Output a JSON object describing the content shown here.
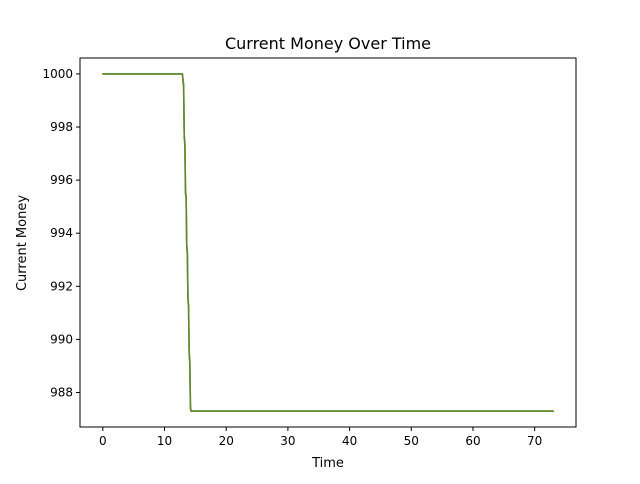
{
  "chart_data": {
    "type": "line",
    "title": "Current Money Over Time",
    "xlabel": "Time",
    "ylabel": "Current Money",
    "xlim": [
      -3.7,
      76.7
    ],
    "ylim": [
      986.7,
      1000.6
    ],
    "xticks": [
      0,
      10,
      20,
      30,
      40,
      50,
      60,
      70
    ],
    "yticks": [
      988,
      990,
      992,
      994,
      996,
      998,
      1000
    ],
    "grid": false,
    "legend": "none",
    "series": [
      {
        "color": "#2ca02c",
        "x": [
          0,
          12.9,
          13.0,
          13.1,
          13.2,
          13.3,
          13.4,
          13.5,
          13.6,
          13.7,
          13.8,
          13.9,
          14.0,
          14.1,
          14.2,
          14.3,
          14.4,
          73
        ],
        "y": [
          1000,
          1000,
          999.8,
          999.6,
          997.6,
          997.3,
          995.5,
          995.3,
          993.5,
          993.2,
          991.5,
          991.2,
          989.4,
          989.1,
          987.4,
          987.3,
          987.3,
          987.3
        ]
      },
      {
        "color": "#6b7f2a",
        "x": [
          0,
          12.9,
          13.0,
          13.1,
          13.2,
          13.3,
          13.4,
          13.5,
          13.6,
          13.7,
          13.8,
          13.9,
          14.0,
          14.1,
          14.2,
          14.3,
          14.4,
          73
        ],
        "y": [
          1000,
          1000,
          999.7,
          999.5,
          997.7,
          997.4,
          995.6,
          995.4,
          993.6,
          993.3,
          991.6,
          991.3,
          989.5,
          989.2,
          987.5,
          987.3,
          987.3,
          987.3
        ]
      }
    ]
  }
}
